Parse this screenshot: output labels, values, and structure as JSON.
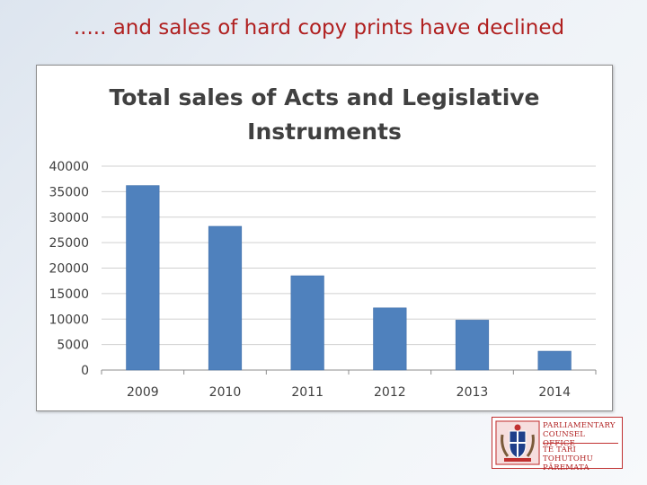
{
  "slide": {
    "title": "..... and sales of hard copy prints have declined"
  },
  "chart_data": {
    "type": "bar",
    "title_lines": [
      "Total sales of Acts and Legislative",
      "Instruments"
    ],
    "categories": [
      "2009",
      "2010",
      "2011",
      "2012",
      "2013",
      "2014"
    ],
    "values": [
      36200,
      28200,
      18500,
      12200,
      9800,
      3700
    ],
    "ylim": [
      0,
      40000
    ],
    "yticks": [
      0,
      5000,
      10000,
      15000,
      20000,
      25000,
      30000,
      35000,
      40000
    ],
    "grid": true,
    "legend": "none",
    "bar_color": "#4f81bd"
  },
  "logo": {
    "top_lines": [
      "PARLIAMENTARY",
      "COUNSEL OFFICE"
    ],
    "bottom_lines": [
      "TE TARI TOHUTOHU",
      "PĀREMATA"
    ],
    "color": "#b02020"
  }
}
